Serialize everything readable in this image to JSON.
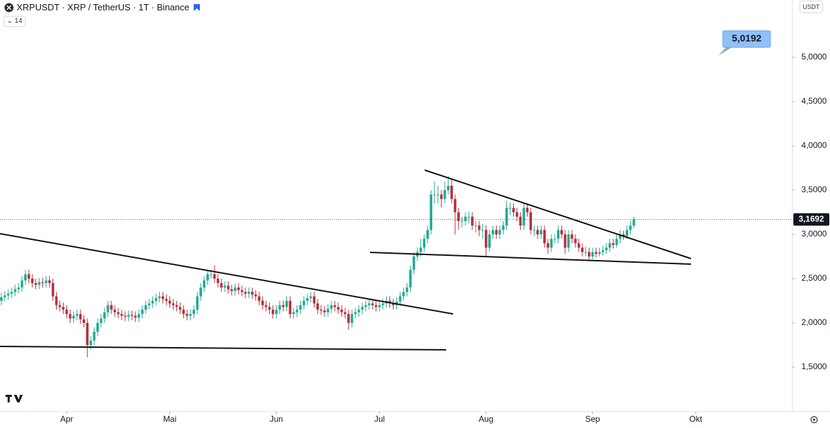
{
  "header": {
    "symbol": "XRPUSDT · XRP / TetherUS · 1T · Binance",
    "indicator": "14",
    "currency": "USDT"
  },
  "chart_data": {
    "type": "candlestick",
    "up_color": "#22ab94",
    "down_color": "#b5303d",
    "grid": false,
    "ylim": [
      1.0,
      5.648
    ],
    "yticks": [
      {
        "value": 1.5,
        "label": "1,5000"
      },
      {
        "value": 2.0,
        "label": "2,0000"
      },
      {
        "value": 2.5,
        "label": "2,5000"
      },
      {
        "value": 3.0,
        "label": "3,0000"
      },
      {
        "value": 3.5,
        "label": "3,5000"
      },
      {
        "value": 4.0,
        "label": "4,0000"
      },
      {
        "value": 4.5,
        "label": "4,5000"
      },
      {
        "value": 5.0,
        "label": "5,0000"
      }
    ],
    "xlim": [
      -0.4,
      230
    ],
    "xticks": [
      {
        "value": 19,
        "label": "Apr"
      },
      {
        "value": 49,
        "label": "Mai"
      },
      {
        "value": 80,
        "label": "Jun"
      },
      {
        "value": 110,
        "label": "Jul"
      },
      {
        "value": 141,
        "label": "Aug"
      },
      {
        "value": 172,
        "label": "Sep"
      },
      {
        "value": 202,
        "label": "Okt"
      }
    ],
    "price_line": {
      "value": 3.1692,
      "label": "3,1692"
    },
    "annotation": {
      "value": 5.0192,
      "label": "5,0192"
    },
    "series": {
      "open": [
        2.25,
        2.29,
        2.31,
        2.33,
        2.35,
        2.38,
        2.4,
        2.48,
        2.55,
        2.5,
        2.45,
        2.43,
        2.46,
        2.45,
        2.48,
        2.45,
        2.3,
        2.2,
        2.18,
        2.15,
        2.1,
        2.05,
        2.08,
        2.1,
        2.04,
        2.0,
        1.75,
        1.8,
        1.9,
        2.0,
        2.05,
        2.12,
        2.2,
        2.15,
        2.12,
        2.1,
        2.08,
        2.07,
        2.09,
        2.08,
        2.06,
        2.1,
        2.15,
        2.2,
        2.22,
        2.25,
        2.28,
        2.3,
        2.27,
        2.25,
        2.22,
        2.2,
        2.18,
        2.15,
        2.1,
        2.08,
        2.1,
        2.15,
        2.3,
        2.4,
        2.48,
        2.55,
        2.55,
        2.5,
        2.45,
        2.4,
        2.42,
        2.38,
        2.36,
        2.4,
        2.37,
        2.35,
        2.33,
        2.35,
        2.32,
        2.3,
        2.25,
        2.2,
        2.18,
        2.15,
        2.1,
        2.15,
        2.2,
        2.18,
        2.25,
        2.1,
        2.12,
        2.15,
        2.2,
        2.25,
        2.28,
        2.3,
        2.22,
        2.15,
        2.14,
        2.12,
        2.16,
        2.2,
        2.18,
        2.15,
        2.12,
        2.1,
        2.0,
        2.1,
        2.12,
        2.15,
        2.18,
        2.2,
        2.22,
        2.2,
        2.18,
        2.2,
        2.22,
        2.25,
        2.22,
        2.2,
        2.24,
        2.3,
        2.35,
        2.4,
        2.6,
        2.75,
        2.8,
        2.85,
        2.95,
        3.05,
        3.45,
        3.45,
        3.45,
        3.4,
        3.5,
        3.55,
        3.4,
        3.25,
        3.15,
        3.15,
        3.2,
        3.2,
        3.1,
        3.1,
        3.05,
        3.05,
        2.85,
        3.0,
        3.05,
        3.0,
        3.05,
        3.1,
        3.3,
        3.3,
        3.25,
        3.2,
        3.1,
        3.3,
        3.25,
        3.05,
        3.05,
        3.0,
        3.05,
        2.9,
        2.85,
        2.95,
        2.95,
        3.05,
        3.0,
        2.85,
        3.0,
        2.95,
        2.9,
        2.85,
        2.8,
        2.8,
        2.75,
        2.8,
        2.78,
        2.8,
        2.82,
        2.85,
        2.9,
        2.88,
        2.95,
        3.0,
        2.98,
        3.05,
        3.1
      ],
      "high": [
        2.34,
        2.36,
        2.38,
        2.4,
        2.43,
        2.45,
        2.53,
        2.6,
        2.6,
        2.55,
        2.5,
        2.51,
        2.51,
        2.53,
        2.53,
        2.5,
        2.35,
        2.25,
        2.23,
        2.2,
        2.15,
        2.13,
        2.15,
        2.15,
        2.09,
        2.05,
        1.85,
        1.95,
        2.05,
        2.1,
        2.17,
        2.25,
        2.25,
        2.2,
        2.17,
        2.15,
        2.13,
        2.14,
        2.14,
        2.13,
        2.15,
        2.2,
        2.25,
        2.27,
        2.3,
        2.33,
        2.35,
        2.35,
        2.32,
        2.3,
        2.27,
        2.25,
        2.23,
        2.2,
        2.15,
        2.15,
        2.2,
        2.35,
        2.45,
        2.53,
        2.6,
        2.6,
        2.65,
        2.55,
        2.5,
        2.47,
        2.47,
        2.43,
        2.45,
        2.45,
        2.42,
        2.4,
        2.4,
        2.4,
        2.37,
        2.35,
        2.3,
        2.25,
        2.23,
        2.2,
        2.2,
        2.25,
        2.25,
        2.3,
        2.3,
        2.17,
        2.2,
        2.25,
        2.3,
        2.33,
        2.35,
        2.35,
        2.27,
        2.2,
        2.19,
        2.21,
        2.25,
        2.25,
        2.23,
        2.2,
        2.17,
        2.15,
        2.15,
        2.17,
        2.2,
        2.23,
        2.25,
        2.27,
        2.27,
        2.25,
        2.25,
        2.27,
        2.3,
        2.3,
        2.27,
        2.29,
        2.35,
        2.4,
        2.45,
        2.65,
        2.8,
        2.85,
        2.95,
        3.0,
        3.1,
        3.5,
        3.6,
        3.55,
        3.5,
        3.6,
        3.66,
        3.62,
        3.45,
        3.3,
        3.2,
        3.25,
        3.26,
        3.25,
        3.15,
        3.15,
        3.12,
        3.1,
        3.05,
        3.1,
        3.1,
        3.1,
        3.15,
        3.38,
        3.36,
        3.35,
        3.3,
        3.25,
        3.35,
        3.35,
        3.3,
        3.1,
        3.1,
        3.1,
        3.1,
        2.95,
        3.0,
        3.0,
        3.1,
        3.1,
        3.05,
        3.05,
        3.05,
        3.0,
        2.95,
        2.9,
        2.86,
        2.85,
        2.85,
        2.85,
        2.85,
        2.87,
        2.9,
        2.95,
        2.95,
        3.0,
        3.05,
        3.04,
        3.1,
        3.15,
        3.2
      ],
      "low": [
        2.2,
        2.24,
        2.26,
        2.28,
        2.3,
        2.33,
        2.35,
        2.43,
        2.45,
        2.4,
        2.38,
        2.38,
        2.4,
        2.4,
        2.4,
        2.25,
        2.15,
        2.13,
        2.1,
        2.05,
        2.0,
        2.0,
        2.03,
        1.99,
        1.95,
        1.61,
        1.7,
        1.75,
        1.85,
        1.95,
        2.0,
        2.07,
        2.1,
        2.07,
        2.05,
        2.03,
        2.02,
        2.02,
        2.03,
        2.01,
        2.01,
        2.05,
        2.1,
        2.15,
        2.17,
        2.2,
        2.23,
        2.22,
        2.2,
        2.17,
        2.15,
        2.13,
        2.1,
        2.05,
        2.03,
        2.03,
        2.05,
        2.1,
        2.25,
        2.35,
        2.43,
        2.5,
        2.45,
        2.4,
        2.35,
        2.35,
        2.33,
        2.31,
        2.31,
        2.32,
        2.3,
        2.28,
        2.28,
        2.27,
        2.25,
        2.2,
        2.15,
        2.13,
        2.1,
        2.05,
        2.05,
        2.1,
        2.13,
        2.13,
        2.05,
        2.05,
        2.07,
        2.1,
        2.15,
        2.2,
        2.23,
        2.17,
        2.1,
        2.09,
        2.07,
        2.07,
        2.11,
        2.13,
        2.1,
        2.07,
        2.05,
        1.92,
        1.95,
        2.05,
        2.07,
        2.1,
        2.13,
        2.15,
        2.15,
        2.13,
        2.13,
        2.15,
        2.17,
        2.17,
        2.15,
        2.15,
        2.19,
        2.25,
        2.3,
        2.35,
        2.55,
        2.7,
        2.75,
        2.8,
        2.9,
        3.0,
        3.35,
        3.35,
        3.3,
        3.35,
        3.45,
        3.35,
        3.0,
        3.05,
        3.08,
        3.1,
        3.12,
        3.05,
        3.02,
        2.98,
        2.95,
        2.75,
        2.8,
        2.95,
        2.95,
        2.95,
        3.0,
        3.05,
        3.22,
        3.2,
        3.15,
        3.05,
        3.05,
        3.2,
        3.0,
        2.98,
        2.95,
        2.95,
        2.85,
        2.78,
        2.8,
        2.9,
        2.9,
        2.95,
        2.78,
        2.8,
        2.9,
        2.85,
        2.8,
        2.75,
        2.75,
        2.7,
        2.72,
        2.74,
        2.75,
        2.76,
        2.78,
        2.8,
        2.84,
        2.85,
        2.9,
        2.94,
        2.95,
        3.0,
        3.07
      ],
      "close": [
        2.29,
        2.31,
        2.33,
        2.35,
        2.38,
        2.4,
        2.48,
        2.55,
        2.5,
        2.45,
        2.43,
        2.46,
        2.45,
        2.48,
        2.45,
        2.3,
        2.2,
        2.18,
        2.15,
        2.1,
        2.05,
        2.08,
        2.1,
        2.04,
        2.0,
        1.75,
        1.8,
        1.9,
        2.0,
        2.05,
        2.12,
        2.2,
        2.15,
        2.12,
        2.1,
        2.08,
        2.07,
        2.09,
        2.08,
        2.06,
        2.1,
        2.15,
        2.2,
        2.22,
        2.25,
        2.28,
        2.3,
        2.27,
        2.25,
        2.22,
        2.2,
        2.18,
        2.15,
        2.1,
        2.08,
        2.1,
        2.15,
        2.3,
        2.4,
        2.48,
        2.55,
        2.55,
        2.5,
        2.45,
        2.4,
        2.42,
        2.38,
        2.36,
        2.4,
        2.37,
        2.35,
        2.33,
        2.35,
        2.32,
        2.3,
        2.25,
        2.2,
        2.18,
        2.15,
        2.1,
        2.15,
        2.2,
        2.18,
        2.25,
        2.1,
        2.12,
        2.15,
        2.2,
        2.25,
        2.28,
        2.3,
        2.22,
        2.15,
        2.14,
        2.12,
        2.16,
        2.2,
        2.18,
        2.15,
        2.12,
        2.1,
        2.0,
        2.1,
        2.12,
        2.15,
        2.18,
        2.2,
        2.22,
        2.2,
        2.18,
        2.2,
        2.22,
        2.25,
        2.22,
        2.2,
        2.24,
        2.3,
        2.35,
        2.4,
        2.6,
        2.75,
        2.8,
        2.85,
        2.95,
        3.05,
        3.45,
        3.45,
        3.45,
        3.4,
        3.5,
        3.55,
        3.4,
        3.25,
        3.15,
        3.15,
        3.2,
        3.2,
        3.1,
        3.1,
        3.05,
        3.05,
        2.85,
        3.0,
        3.05,
        3.0,
        3.05,
        3.1,
        3.3,
        3.3,
        3.25,
        3.2,
        3.1,
        3.3,
        3.25,
        3.05,
        3.05,
        3.0,
        3.05,
        2.9,
        2.85,
        2.95,
        2.95,
        3.05,
        3.0,
        2.85,
        3.0,
        2.95,
        2.9,
        2.85,
        2.8,
        2.8,
        2.75,
        2.8,
        2.78,
        2.8,
        2.82,
        2.85,
        2.9,
        2.88,
        2.95,
        3.0,
        2.98,
        3.05,
        3.1,
        3.17
      ]
    }
  }
}
